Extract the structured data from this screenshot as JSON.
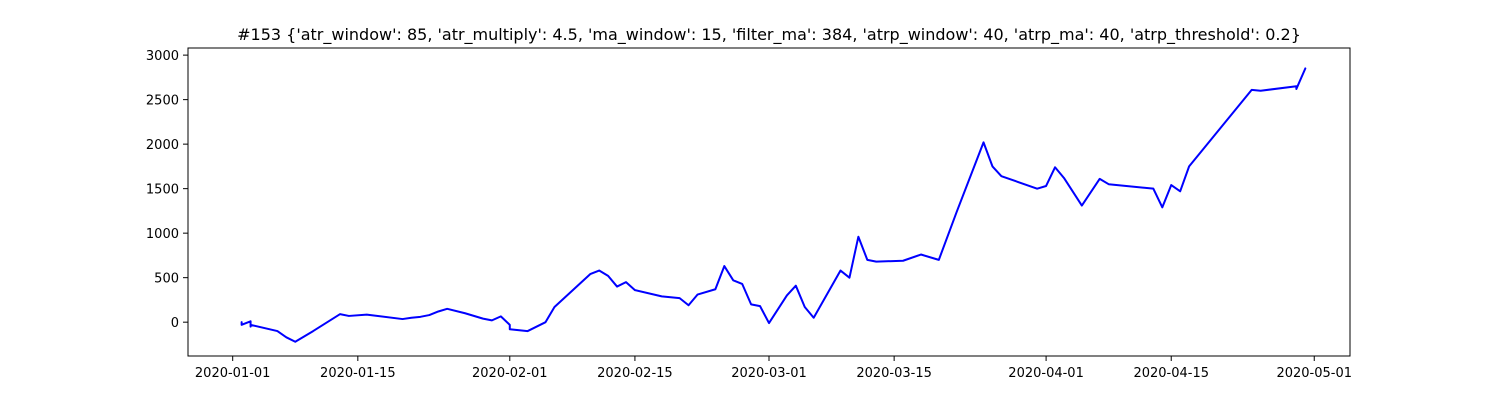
{
  "chart_data": {
    "type": "line",
    "title": "#153 {'atr_window': 85, 'atr_multiply': 4.5, 'ma_window': 15, 'filter_ma': 384, 'atrp_window': 40, 'atrp_ma': 40, 'atrp_threshold': 0.2}",
    "xlabel": "",
    "ylabel": "",
    "x_type": "date",
    "xlim": [
      "2019-12-27",
      "2020-05-05"
    ],
    "ylim": [
      -380,
      3080
    ],
    "x_ticks": [
      "2020-01-01",
      "2020-01-15",
      "2020-02-01",
      "2020-02-15",
      "2020-03-01",
      "2020-03-15",
      "2020-04-01",
      "2020-04-15",
      "2020-05-01"
    ],
    "y_ticks": [
      0,
      500,
      1000,
      1500,
      2000,
      2500,
      3000
    ],
    "grid": false,
    "legend": "none",
    "line_color": "#0000ff",
    "series": [
      {
        "x": [
          "2020-01-02",
          "2020-01-02",
          "2020-01-03",
          "2020-01-03",
          "2020-01-03",
          "2020-01-06",
          "2020-01-07",
          "2020-01-08",
          "2020-01-10",
          "2020-01-13",
          "2020-01-14",
          "2020-01-16",
          "2020-01-20",
          "2020-01-21",
          "2020-01-22",
          "2020-01-23",
          "2020-01-24",
          "2020-01-25",
          "2020-01-27",
          "2020-01-29",
          "2020-01-30",
          "2020-01-31",
          "2020-02-01",
          "2020-02-01",
          "2020-02-03",
          "2020-02-05",
          "2020-02-06",
          "2020-02-10",
          "2020-02-11",
          "2020-02-12",
          "2020-02-13",
          "2020-02-14",
          "2020-02-15",
          "2020-02-18",
          "2020-02-19",
          "2020-02-20",
          "2020-02-21",
          "2020-02-22",
          "2020-02-24",
          "2020-02-25",
          "2020-02-26",
          "2020-02-27",
          "2020-02-28",
          "2020-02-29",
          "2020-03-01",
          "2020-03-03",
          "2020-03-04",
          "2020-03-05",
          "2020-03-06",
          "2020-03-09",
          "2020-03-10",
          "2020-03-11",
          "2020-03-12",
          "2020-03-13",
          "2020-03-16",
          "2020-03-18",
          "2020-03-20",
          "2020-03-22",
          "2020-03-25",
          "2020-03-26",
          "2020-03-27",
          "2020-03-31",
          "2020-04-01",
          "2020-04-02",
          "2020-04-03",
          "2020-04-05",
          "2020-04-07",
          "2020-04-08",
          "2020-04-13",
          "2020-04-14",
          "2020-04-15",
          "2020-04-16",
          "2020-04-17",
          "2020-04-24",
          "2020-04-25",
          "2020-04-29",
          "2020-04-29",
          "2020-04-30"
        ],
        "y": [
          0,
          -30,
          10,
          -50,
          -30,
          -100,
          -170,
          -220,
          -100,
          90,
          70,
          85,
          35,
          50,
          60,
          80,
          120,
          150,
          100,
          40,
          20,
          65,
          -30,
          -80,
          -100,
          0,
          170,
          540,
          580,
          520,
          400,
          450,
          360,
          290,
          280,
          270,
          190,
          310,
          370,
          630,
          470,
          430,
          200,
          180,
          -10,
          300,
          410,
          170,
          50,
          580,
          500,
          960,
          700,
          680,
          690,
          760,
          700,
          1240,
          2020,
          1750,
          1640,
          1500,
          1530,
          1740,
          1620,
          1310,
          1610,
          1550,
          1500,
          1290,
          1540,
          1470,
          1750,
          2610,
          2600,
          2650,
          2620,
          2850
        ]
      }
    ]
  }
}
